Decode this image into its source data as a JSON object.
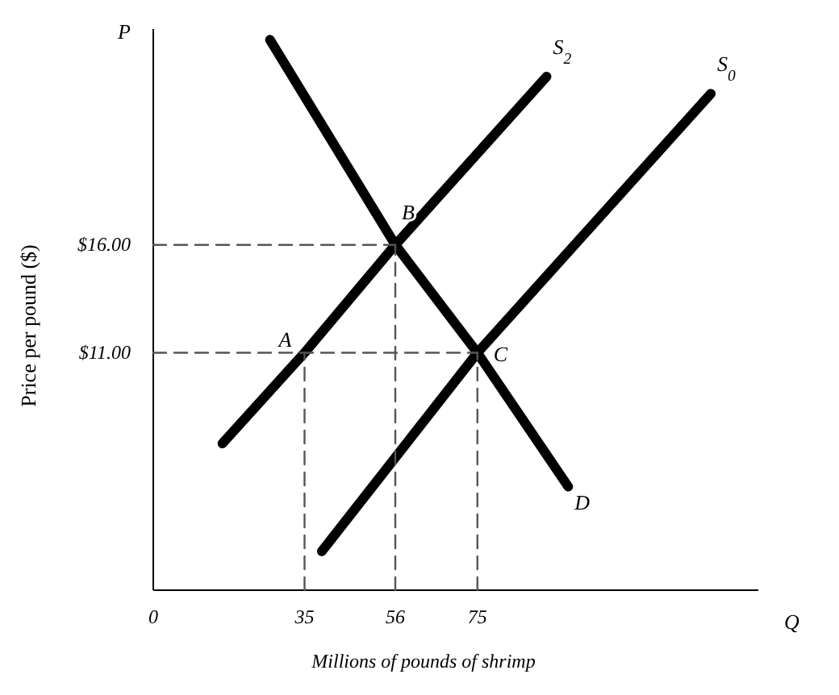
{
  "chart_data": {
    "type": "line",
    "xlabel": "Millions of pounds of shrimp",
    "ylabel": "Price per pound ($)",
    "xlim": [
      0,
      140
    ],
    "ylim": [
      0,
      26
    ],
    "xticks": [
      0,
      35,
      56,
      75
    ],
    "yticks": [
      {
        "value": 11,
        "label": "$11.00"
      },
      {
        "value": 16,
        "label": "$16.00"
      }
    ],
    "grid": false,
    "legend": false,
    "marker": "none",
    "series": [
      {
        "name": "S$_{2}$",
        "color": "#000000",
        "line_style": "solid",
        "x": [
          16,
          35,
          56,
          91
        ],
        "values": [
          6.8,
          11,
          16,
          23.8
        ]
      },
      {
        "name": "S$_{0}$",
        "color": "#000000",
        "line_style": "solid",
        "x": [
          39,
          75,
          129
        ],
        "values": [
          1.8,
          11,
          23
        ]
      },
      {
        "color": "#000000",
        "line_style": "solid",
        "x": [
          27,
          56,
          75,
          96
        ],
        "values": [
          25.5,
          16,
          11,
          4.8
        ]
      },
      {
        "color": "#555555",
        "line_style": "dashed",
        "x": [
          0,
          56
        ],
        "values": [
          16,
          16
        ]
      },
      {
        "color": "#555555",
        "line_style": "dashed",
        "x": [
          0,
          75
        ],
        "values": [
          11,
          11
        ]
      },
      {
        "color": "#555555",
        "line_style": "dashed",
        "x": [
          35,
          35
        ],
        "values": [
          0,
          11
        ]
      },
      {
        "color": "#555555",
        "line_style": "dashed",
        "x": [
          56,
          56
        ],
        "values": [
          0,
          16
        ]
      },
      {
        "color": "#555555",
        "line_style": "dashed",
        "x": [
          75,
          75
        ],
        "values": [
          0,
          11
        ]
      }
    ],
    "annotations": [
      "P",
      "Q",
      {
        "text": "A",
        "x": 35,
        "y": 11
      },
      {
        "text": "B",
        "x": 56,
        "y": 16
      },
      {
        "text": "C",
        "x": 75,
        "y": 11
      },
      {
        "text": "D",
        "x": 96,
        "y": 4.8
      }
    ]
  }
}
